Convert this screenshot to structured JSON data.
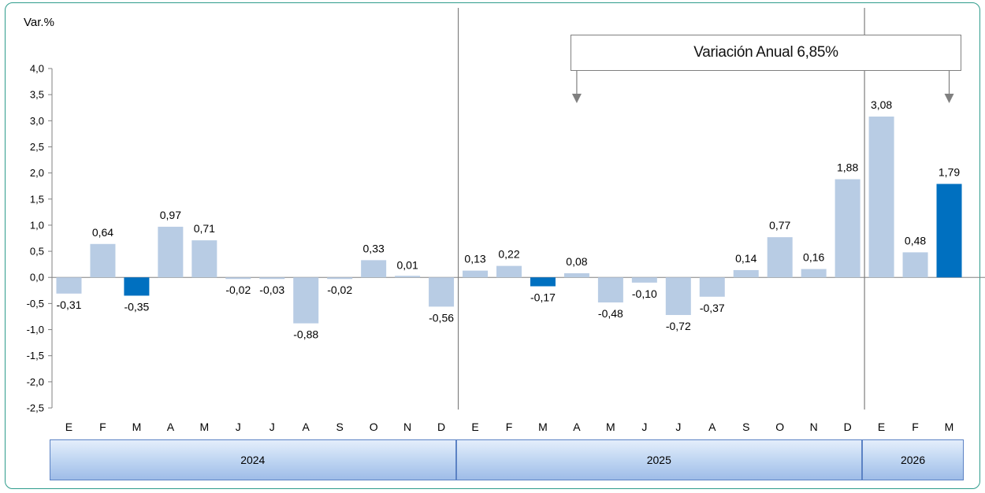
{
  "chart_data": {
    "type": "bar",
    "ylabel": "Var.%",
    "ylim": [
      -2.5,
      4.0
    ],
    "yticks": [
      "4,0",
      "3,5",
      "3,0",
      "2,5",
      "2,0",
      "1,5",
      "1,0",
      "0,5",
      "0,0",
      "-0,5",
      "-1,0",
      "-1,5",
      "-2,0",
      "-2,5"
    ],
    "yticks_values": [
      4.0,
      3.5,
      3.0,
      2.5,
      2.0,
      1.5,
      1.0,
      0.5,
      0.0,
      -0.5,
      -1.0,
      -1.5,
      -2.0,
      -2.5
    ],
    "categories": [
      "E",
      "F",
      "M",
      "A",
      "M",
      "J",
      "J",
      "A",
      "S",
      "O",
      "N",
      "D",
      "E",
      "F",
      "M",
      "A",
      "M",
      "J",
      "J",
      "A",
      "S",
      "O",
      "N",
      "D",
      "E",
      "F",
      "M"
    ],
    "values": [
      -0.31,
      0.64,
      -0.35,
      0.97,
      0.71,
      -0.02,
      -0.03,
      -0.88,
      -0.02,
      0.33,
      0.01,
      -0.56,
      0.13,
      0.22,
      -0.17,
      0.08,
      -0.48,
      -0.1,
      -0.72,
      -0.37,
      0.14,
      0.77,
      0.16,
      1.88,
      3.08,
      0.48,
      1.79
    ],
    "value_labels": [
      "-0,31",
      "0,64",
      "-0,35",
      "0,97",
      "0,71",
      "-0,02",
      "-0,03",
      "-0,88",
      "-0,02",
      "0,33",
      "0,01",
      "-0,56",
      "0,13",
      "0,22",
      "-0,17",
      "0,08",
      "-0,48",
      "-0,10",
      "-0,72",
      "-0,37",
      "0,14",
      "0,77",
      "0,16",
      "1,88",
      "3,08",
      "0,48",
      "1,79"
    ],
    "highlight_indices": [
      2,
      14,
      26
    ],
    "colors": {
      "bar": "#b8cce4",
      "highlight": "#0070c0",
      "axis": "#808080",
      "frame": "#2e9c8c"
    },
    "years": [
      {
        "label": "2024",
        "months": 12
      },
      {
        "label": "2025",
        "months": 12
      },
      {
        "label": "2026",
        "months": 3
      }
    ],
    "annotation": {
      "text": "Variación Anual 6,85%",
      "from_index": 15,
      "to_index": 26
    },
    "grid": false,
    "legend": "none"
  }
}
